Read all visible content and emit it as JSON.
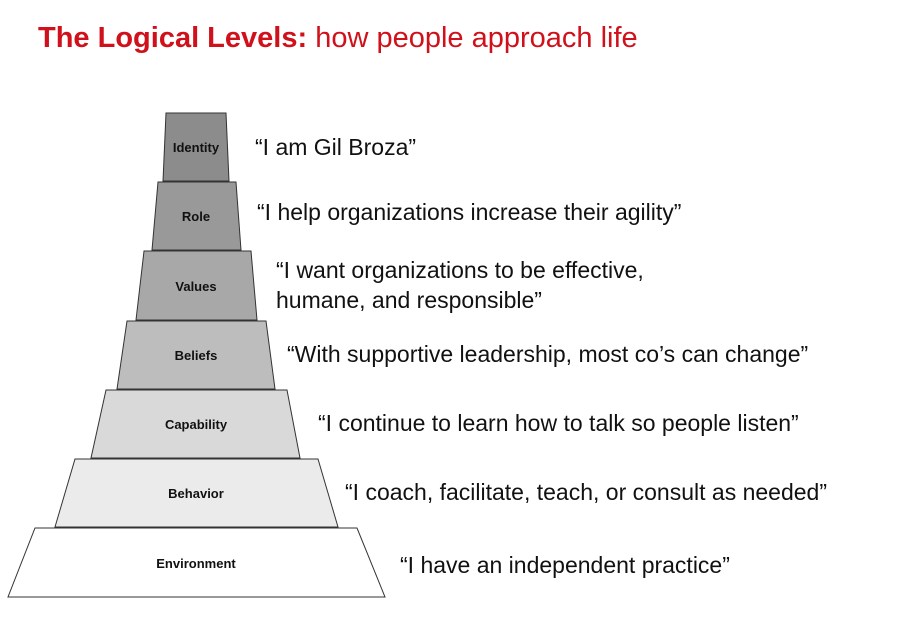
{
  "title": {
    "bold": "The Logical Levels:",
    "rest": "how people approach life"
  },
  "levels": [
    {
      "name": "Identity",
      "quote": "“I am Gil Broza”",
      "fill": "#8c8c8c"
    },
    {
      "name": "Role",
      "quote": "“I help organizations increase their agility”",
      "fill": "#999999"
    },
    {
      "name": "Values",
      "quote_line1": "“I want organizations to be effective,",
      "quote_line2": "humane, and responsible”",
      "fill": "#a8a8a8"
    },
    {
      "name": "Beliefs",
      "quote": "“With supportive leadership, most co’s can change”",
      "fill": "#bdbdbd"
    },
    {
      "name": "Capability",
      "quote": "“I continue to learn how to talk so people listen”",
      "fill": "#d9d9d9"
    },
    {
      "name": "Behavior",
      "quote": "“I coach, facilitate, teach, or consult as needed”",
      "fill": "#ebebeb"
    },
    {
      "name": "Environment",
      "quote": "“I have an independent practice”",
      "fill": "#ffffff"
    }
  ]
}
